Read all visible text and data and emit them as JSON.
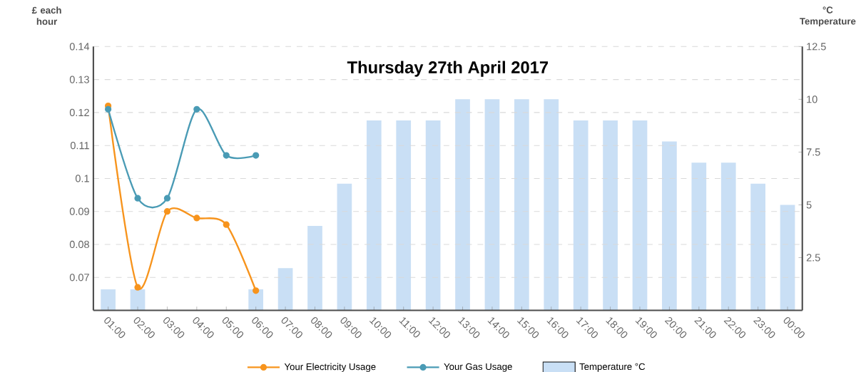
{
  "chart_data": {
    "type": "line",
    "title": "Thursday 27th April 2017",
    "ylabel": "£ each hour",
    "y2label": "°C Temperature",
    "categories": [
      "01:00",
      "02:00",
      "03:00",
      "04:00",
      "05:00",
      "06:00",
      "07:00",
      "08:00",
      "09:00",
      "10:00",
      "11:00",
      "12:00",
      "13:00",
      "14:00",
      "15:00",
      "16:00",
      "17:00",
      "18:00",
      "19:00",
      "20:00",
      "21:00",
      "22:00",
      "23:00",
      "00:00"
    ],
    "series": [
      {
        "name": "Your Electricity Usage",
        "color": "#f7941d",
        "values": [
          0.122,
          0.067,
          0.09,
          0.088,
          0.086,
          0.066,
          null,
          null,
          null,
          null,
          null,
          null,
          null,
          null,
          null,
          null,
          null,
          null,
          null,
          null,
          null,
          null,
          null,
          null
        ]
      },
      {
        "name": "Your Gas Usage",
        "color": "#4a9bb5",
        "values": [
          0.121,
          0.094,
          0.094,
          0.121,
          0.107,
          0.107,
          null,
          null,
          null,
          null,
          null,
          null,
          null,
          null,
          null,
          null,
          null,
          null,
          null,
          null,
          null,
          null,
          null,
          null
        ]
      },
      {
        "name": "Temperature °C",
        "type": "bar",
        "axis": "y2",
        "color": "#c9dff5",
        "values": [
          1,
          1,
          null,
          null,
          null,
          1,
          2,
          4,
          6,
          9,
          9,
          9,
          10,
          10,
          10,
          10,
          9,
          9,
          9,
          8,
          7,
          7,
          6,
          5
        ]
      }
    ],
    "ylim": [
      0.06,
      0.14
    ],
    "yticks": [
      0.07,
      0.08,
      0.09,
      0.1,
      0.11,
      0.12,
      0.13,
      0.14
    ],
    "y2lim": [
      0,
      12.5
    ],
    "y2ticks": [
      2.5,
      5,
      7.5,
      10,
      12.5
    ],
    "grid": "y",
    "legend": "bottom",
    "marker": "circle",
    "line_style": "solid"
  }
}
